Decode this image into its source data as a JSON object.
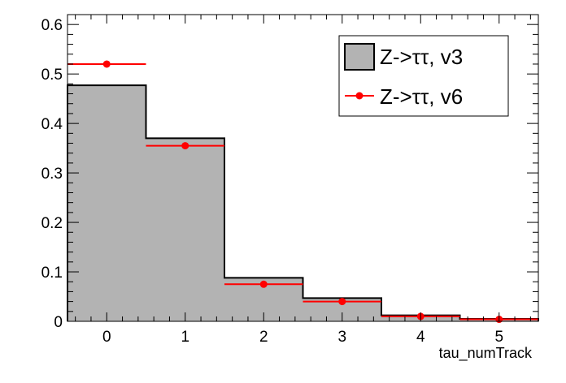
{
  "chart_data": {
    "type": "bar",
    "title": "",
    "xlabel": "tau_numTrack",
    "ylabel": "",
    "xlim": [
      -0.5,
      5.5
    ],
    "ylim": [
      0,
      0.62
    ],
    "x_ticks": [
      "0",
      "1",
      "2",
      "3",
      "4",
      "5"
    ],
    "y_ticks": [
      "0",
      "0.1",
      "0.2",
      "0.3",
      "0.4",
      "0.5",
      "0.6"
    ],
    "grid": false,
    "legend_position": "top-right",
    "categories": [
      0,
      1,
      2,
      3,
      4,
      5
    ],
    "series": [
      {
        "name": "Z->ττ, v3",
        "style": "filled-histogram",
        "fill_color": "#b3b3b3",
        "line_color": "#000000",
        "values": [
          0.477,
          0.37,
          0.088,
          0.047,
          0.012,
          0.005
        ]
      },
      {
        "name": "Z->ττ, v6",
        "style": "points-with-bin-width",
        "color": "#ff0000",
        "values": [
          0.52,
          0.355,
          0.075,
          0.04,
          0.01,
          0.004
        ]
      }
    ]
  }
}
